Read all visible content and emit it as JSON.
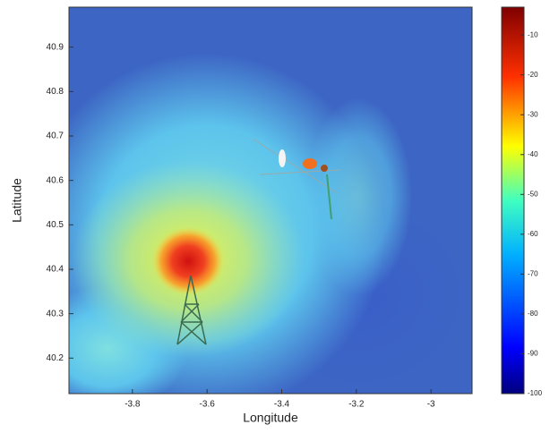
{
  "chart_data": {
    "type": "heatmap",
    "x_label": "Longitude",
    "y_label": "Latitude",
    "xlim": [
      -3.97,
      -2.89
    ],
    "xticks": [
      -3.8,
      -3.6,
      -3.4,
      -3.2,
      -3
    ],
    "ylim": [
      40.12,
      40.99
    ],
    "yticks": [
      40.2,
      40.3,
      40.4,
      40.5,
      40.6,
      40.7,
      40.8,
      40.9
    ],
    "colormap": "jet",
    "clim": [
      -100,
      -3
    ],
    "colorbar_ticks": [
      -10,
      -20,
      -30,
      -40,
      -50,
      -60,
      -70,
      -80,
      -90,
      -100
    ]
  }
}
